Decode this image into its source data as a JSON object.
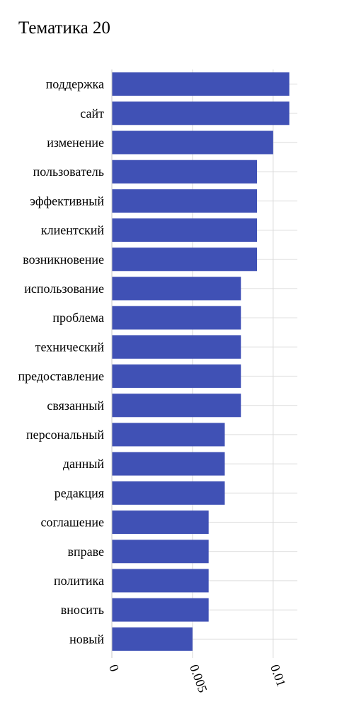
{
  "chart_data": {
    "type": "bar",
    "orientation": "horizontal",
    "title": "Тематика 20",
    "xlabel": "",
    "ylabel": "",
    "categories": [
      "поддержка",
      "сайт",
      "изменение",
      "пользователь",
      "эффективный",
      "клиентский",
      "возникновение",
      "использование",
      "проблема",
      "технический",
      "предоставление",
      "связанный",
      "персональный",
      "данный",
      "редакция",
      "соглашение",
      "вправе",
      "политика",
      "вносить",
      "новый"
    ],
    "values": [
      0.011,
      0.011,
      0.01,
      0.009,
      0.009,
      0.009,
      0.009,
      0.008,
      0.008,
      0.008,
      0.008,
      0.008,
      0.007,
      0.007,
      0.007,
      0.006,
      0.006,
      0.006,
      0.006,
      0.005
    ],
    "xlim": [
      0,
      0.0115
    ],
    "xticks": [
      0,
      0.005,
      0.01
    ],
    "xtick_labels": [
      "0",
      "0.005",
      "0.01"
    ],
    "grid": true,
    "bar_color": "#4051b5",
    "grid_color": "#d9d9d9"
  }
}
